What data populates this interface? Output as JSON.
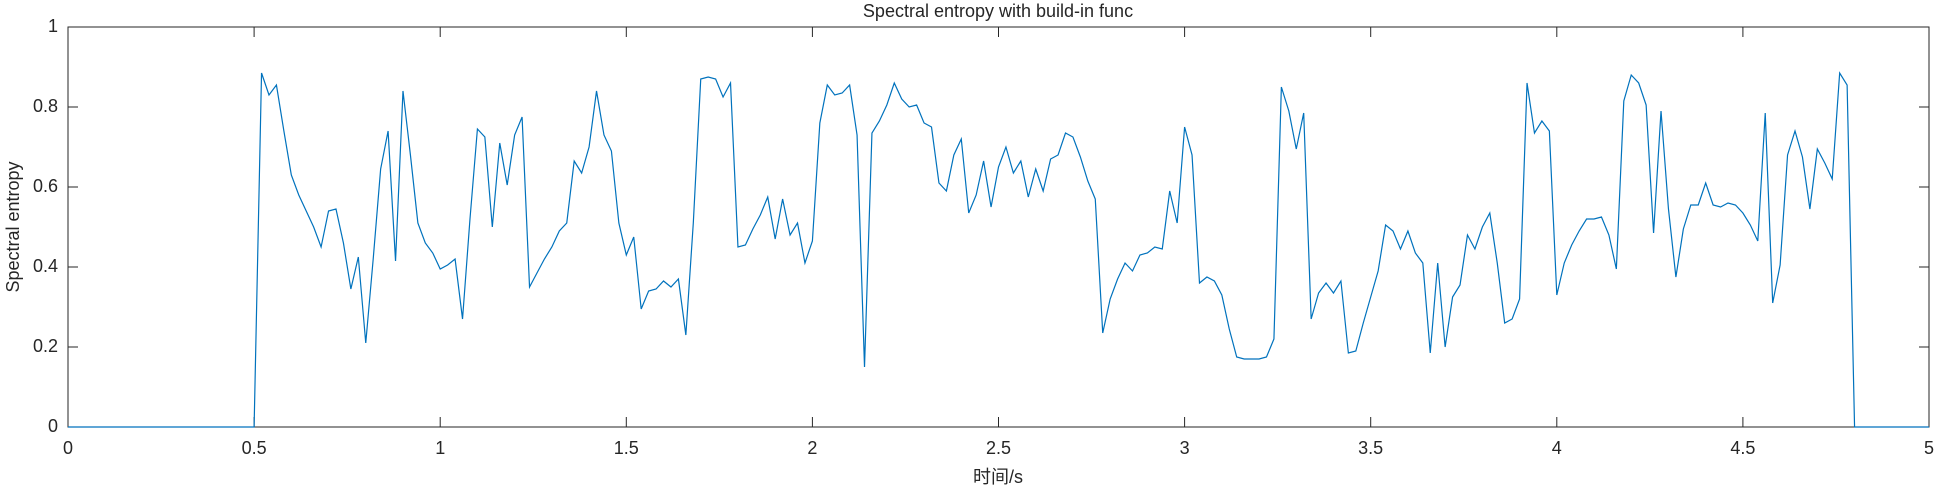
{
  "chart_data": {
    "type": "line",
    "title": "Spectral entropy with build-in func",
    "xlabel": "时间/s",
    "ylabel": "Spectral entropy",
    "xlim": [
      0,
      5
    ],
    "ylim": [
      0,
      1
    ],
    "xticks": [
      0,
      0.5,
      1,
      1.5,
      2,
      2.5,
      3,
      3.5,
      4,
      4.5,
      5
    ],
    "yticks": [
      0,
      0.2,
      0.4,
      0.6,
      0.8,
      1
    ],
    "grid": false,
    "series": [
      {
        "color": "#0072bd",
        "x": [
          0,
          0.5,
          0.52,
          0.54,
          0.56,
          0.58,
          0.6,
          0.62,
          0.64,
          0.66,
          0.68,
          0.7,
          0.72,
          0.74,
          0.76,
          0.78,
          0.8,
          0.82,
          0.84,
          0.86,
          0.88,
          0.9,
          0.92,
          0.94,
          0.96,
          0.98,
          1.0,
          1.02,
          1.04,
          1.06,
          1.08,
          1.1,
          1.12,
          1.14,
          1.16,
          1.18,
          1.2,
          1.22,
          1.24,
          1.26,
          1.28,
          1.3,
          1.32,
          1.34,
          1.36,
          1.38,
          1.4,
          1.42,
          1.44,
          1.46,
          1.48,
          1.5,
          1.52,
          1.54,
          1.56,
          1.58,
          1.6,
          1.62,
          1.64,
          1.66,
          1.68,
          1.7,
          1.72,
          1.74,
          1.76,
          1.78,
          1.8,
          1.82,
          1.84,
          1.86,
          1.88,
          1.9,
          1.92,
          1.94,
          1.96,
          1.98,
          2.0,
          2.02,
          2.04,
          2.06,
          2.08,
          2.1,
          2.12,
          2.14,
          2.16,
          2.18,
          2.2,
          2.22,
          2.24,
          2.26,
          2.28,
          2.3,
          2.32,
          2.34,
          2.36,
          2.38,
          2.4,
          2.42,
          2.44,
          2.46,
          2.48,
          2.5,
          2.52,
          2.54,
          2.56,
          2.58,
          2.6,
          2.62,
          2.64,
          2.66,
          2.68,
          2.7,
          2.72,
          2.74,
          2.76,
          2.78,
          2.8,
          2.82,
          2.84,
          2.86,
          2.88,
          2.9,
          2.92,
          2.94,
          2.96,
          2.98,
          3.0,
          3.02,
          3.04,
          3.06,
          3.08,
          3.1,
          3.12,
          3.14,
          3.16,
          3.18,
          3.2,
          3.22,
          3.24,
          3.26,
          3.28,
          3.3,
          3.32,
          3.34,
          3.36,
          3.38,
          3.4,
          3.42,
          3.44,
          3.46,
          3.48,
          3.5,
          3.52,
          3.54,
          3.56,
          3.58,
          3.6,
          3.62,
          3.64,
          3.66,
          3.68,
          3.7,
          3.72,
          3.74,
          3.76,
          3.78,
          3.8,
          3.82,
          3.84,
          3.86,
          3.88,
          3.9,
          3.92,
          3.94,
          3.96,
          3.98,
          4.0,
          4.02,
          4.04,
          4.06,
          4.08,
          4.1,
          4.12,
          4.14,
          4.16,
          4.18,
          4.2,
          4.22,
          4.24,
          4.26,
          4.28,
          4.3,
          4.32,
          4.34,
          4.36,
          4.38,
          4.4,
          4.42,
          4.44,
          4.46,
          4.48,
          4.5,
          4.52,
          4.54,
          4.56,
          4.58,
          4.6,
          4.62,
          4.64,
          4.66,
          4.68,
          4.7,
          4.72,
          4.74,
          4.76,
          4.78,
          4.8,
          5.0
        ],
        "values": [
          0,
          0,
          0.885,
          0.83,
          0.855,
          0.74,
          0.63,
          0.58,
          0.54,
          0.5,
          0.45,
          0.54,
          0.545,
          0.46,
          0.345,
          0.425,
          0.21,
          0.42,
          0.645,
          0.74,
          0.415,
          0.84,
          0.68,
          0.51,
          0.46,
          0.435,
          0.395,
          0.405,
          0.42,
          0.27,
          0.52,
          0.745,
          0.725,
          0.5,
          0.71,
          0.605,
          0.73,
          0.775,
          0.35,
          0.385,
          0.42,
          0.45,
          0.49,
          0.51,
          0.665,
          0.635,
          0.7,
          0.84,
          0.73,
          0.69,
          0.51,
          0.43,
          0.475,
          0.295,
          0.34,
          0.345,
          0.365,
          0.35,
          0.37,
          0.23,
          0.51,
          0.87,
          0.875,
          0.87,
          0.825,
          0.86,
          0.45,
          0.455,
          0.495,
          0.53,
          0.575,
          0.47,
          0.57,
          0.48,
          0.51,
          0.41,
          0.465,
          0.76,
          0.855,
          0.83,
          0.835,
          0.855,
          0.73,
          0.15,
          0.735,
          0.765,
          0.805,
          0.86,
          0.82,
          0.8,
          0.805,
          0.76,
          0.75,
          0.61,
          0.59,
          0.68,
          0.72,
          0.535,
          0.58,
          0.665,
          0.55,
          0.65,
          0.7,
          0.635,
          0.665,
          0.575,
          0.645,
          0.59,
          0.67,
          0.68,
          0.735,
          0.725,
          0.675,
          0.615,
          0.57,
          0.235,
          0.32,
          0.37,
          0.41,
          0.39,
          0.43,
          0.435,
          0.45,
          0.445,
          0.59,
          0.51,
          0.75,
          0.68,
          0.36,
          0.375,
          0.365,
          0.33,
          0.245,
          0.175,
          0.17,
          0.17,
          0.17,
          0.175,
          0.22,
          0.85,
          0.79,
          0.695,
          0.785,
          0.27,
          0.335,
          0.36,
          0.335,
          0.365,
          0.185,
          0.19,
          0.26,
          0.325,
          0.39,
          0.505,
          0.49,
          0.445,
          0.49,
          0.435,
          0.41,
          0.185,
          0.41,
          0.2,
          0.325,
          0.355,
          0.48,
          0.445,
          0.5,
          0.535,
          0.41,
          0.26,
          0.27,
          0.32,
          0.86,
          0.735,
          0.765,
          0.74,
          0.33,
          0.41,
          0.455,
          0.49,
          0.52,
          0.52,
          0.525,
          0.48,
          0.395,
          0.815,
          0.88,
          0.86,
          0.805,
          0.485,
          0.79,
          0.545,
          0.375,
          0.495,
          0.555,
          0.555,
          0.61,
          0.555,
          0.55,
          0.56,
          0.555,
          0.535,
          0.505,
          0.465,
          0.785,
          0.31,
          0.405,
          0.68,
          0.74,
          0.675,
          0.545,
          0.695,
          0.66,
          0.62,
          0.885,
          0.855,
          0,
          0
        ]
      }
    ]
  }
}
